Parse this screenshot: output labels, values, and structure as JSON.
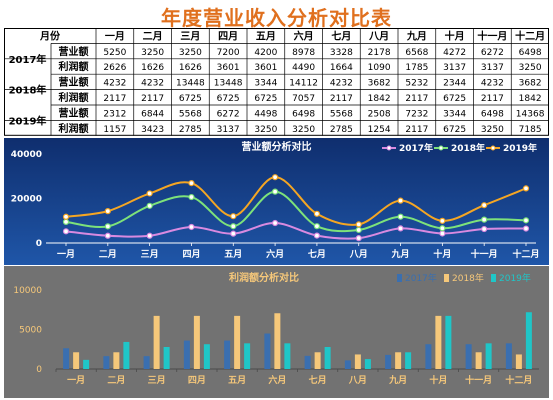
{
  "title": "年度营业收入分析对比表",
  "table": {
    "month_header": "月份",
    "months": [
      "一月",
      "二月",
      "三月",
      "四月",
      "五月",
      "六月",
      "七月",
      "八月",
      "九月",
      "十月",
      "十一月",
      "十二月"
    ],
    "years": [
      {
        "label": "2017年",
        "rows": [
          {
            "label": "营业额",
            "values": [
              "5250",
              "3250",
              "3250",
              "7200",
              "4200",
              "8978",
              "3328",
              "2178",
              "6568",
              "4272",
              "6272",
              "6498"
            ]
          },
          {
            "label": "利润额",
            "values": [
              "2626",
              "1626",
              "1626",
              "3601",
              "3601",
              "4490",
              "1664",
              "1090",
              "1785",
              "3137",
              "3137",
              "3250"
            ]
          }
        ]
      },
      {
        "label": "2018年",
        "rows": [
          {
            "label": "营业额",
            "values": [
              "4232",
              "4232",
              "13448",
              "13448",
              "3344",
              "14112",
              "4232",
              "3682",
              "5232",
              "2344",
              "4232",
              "3682"
            ]
          },
          {
            "label": "利润额",
            "values": [
              "2117",
              "2117",
              "6725",
              "6725",
              "6725",
              "7057",
              "2117",
              "1842",
              "2117",
              "6725",
              "2117",
              "1842"
            ]
          }
        ]
      },
      {
        "label": "2019年",
        "rows": [
          {
            "label": "营业额",
            "values": [
              "2312",
              "6844",
              "5568",
              "6272",
              "4498",
              "6498",
              "5568",
              "2508",
              "7232",
              "3344",
              "6498",
              "14368"
            ]
          },
          {
            "label": "利润额",
            "values": [
              "1157",
              "3423",
              "2785",
              "3137",
              "3250",
              "3250",
              "2785",
              "1254",
              "2117",
              "6725",
              "3250",
              "7185"
            ]
          }
        ]
      }
    ]
  },
  "chart_data": [
    {
      "type": "line",
      "title": "营业额分析对比",
      "categories": [
        "一月",
        "二月",
        "三月",
        "四月",
        "五月",
        "六月",
        "七月",
        "八月",
        "九月",
        "十月",
        "十一月",
        "十二月"
      ],
      "ylim": [
        0,
        40000
      ],
      "yticks": [
        "0",
        "20000",
        "40000"
      ],
      "grid": false,
      "legend_position": "top-right",
      "colors": {
        "2017年": "#d98ae0",
        "2018年": "#7de27a",
        "2019年": "#f5a623",
        "background_top": "#0f2e6e",
        "background_bottom": "#1f56a8"
      },
      "series": [
        {
          "name": "2017年",
          "values": [
            5250,
            3250,
            3250,
            7200,
            4200,
            8978,
            3328,
            2178,
            6568,
            4272,
            6272,
            6498
          ]
        },
        {
          "name": "2018年",
          "values": [
            9482,
            7482,
            16698,
            20648,
            7544,
            23090,
            7560,
            5860,
            11800,
            6616,
            10504,
            10180
          ]
        },
        {
          "name": "2019年",
          "values": [
            11794,
            14326,
            22266,
            26920,
            12042,
            29588,
            13128,
            8368,
            19032,
            9960,
            17002,
            24548
          ]
        }
      ]
    },
    {
      "type": "bar",
      "title": "利润额分析对比",
      "categories": [
        "一月",
        "二月",
        "三月",
        "四月",
        "五月",
        "六月",
        "七月",
        "八月",
        "九月",
        "十月",
        "十一月",
        "十二月"
      ],
      "ylim": [
        0,
        10000
      ],
      "yticks": [
        "0",
        "5000",
        "10000"
      ],
      "grid": false,
      "legend_position": "top-right",
      "colors": {
        "2017年": "#3a6fb0",
        "2018年": "#f6c87a",
        "2019年": "#1fc6c8",
        "background": "#727272"
      },
      "series": [
        {
          "name": "2017年",
          "values": [
            2626,
            1626,
            1626,
            3601,
            3601,
            4490,
            1664,
            1090,
            1785,
            3137,
            3137,
            3250
          ]
        },
        {
          "name": "2018年",
          "values": [
            2117,
            2117,
            6725,
            6725,
            6725,
            7057,
            2117,
            1842,
            2117,
            6725,
            2117,
            1842
          ]
        },
        {
          "name": "2019年",
          "values": [
            1157,
            3423,
            2785,
            3137,
            3250,
            3250,
            2785,
            1254,
            2117,
            6725,
            3250,
            7185
          ]
        }
      ]
    }
  ]
}
